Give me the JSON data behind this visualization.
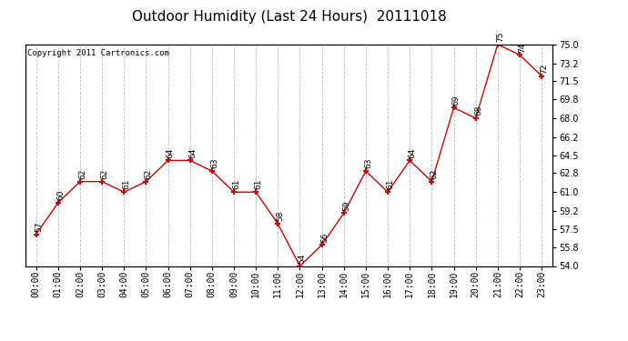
{
  "title": "Outdoor Humidity (Last 24 Hours)  20111018",
  "copyright": "Copyright 2011 Cartronics.com",
  "x_labels": [
    "00:00",
    "01:00",
    "02:00",
    "03:00",
    "04:00",
    "05:00",
    "06:00",
    "07:00",
    "08:00",
    "09:00",
    "10:00",
    "11:00",
    "12:00",
    "13:00",
    "14:00",
    "15:00",
    "16:00",
    "17:00",
    "18:00",
    "19:00",
    "20:00",
    "21:00",
    "22:00",
    "23:00"
  ],
  "y_values": [
    57,
    60,
    62,
    62,
    61,
    62,
    64,
    64,
    63,
    61,
    61,
    58,
    54,
    56,
    59,
    63,
    61,
    64,
    62,
    69,
    68,
    75,
    74,
    72
  ],
  "y_labels": [
    54.0,
    55.8,
    57.5,
    59.2,
    61.0,
    62.8,
    64.5,
    66.2,
    68.0,
    69.8,
    71.5,
    73.2,
    75.0
  ],
  "ylim": [
    54.0,
    75.0
  ],
  "line_color": "#cc0000",
  "marker": "+",
  "marker_color": "#cc0000",
  "bg_color": "#ffffff",
  "grid_color": "#bbbbbb",
  "title_fontsize": 11,
  "copyright_fontsize": 6.5,
  "tick_fontsize": 7,
  "annot_fontsize": 6.5
}
